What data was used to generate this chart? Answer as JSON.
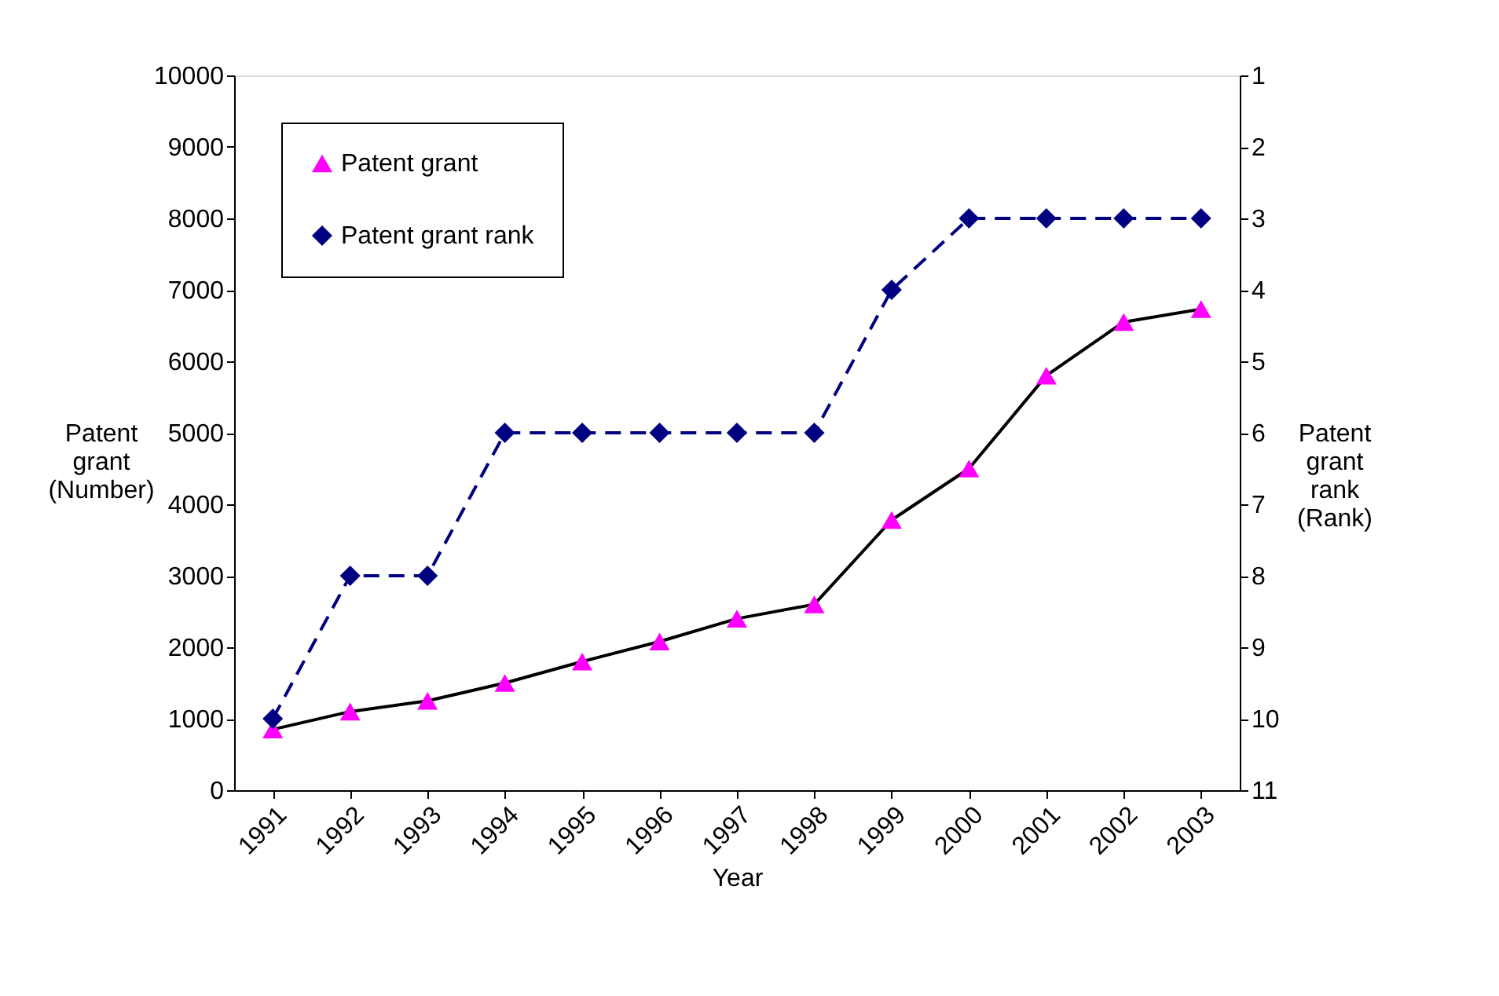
{
  "chart_data": {
    "type": "line",
    "xlabel": "Year",
    "ylabel": "Patent grant (Number)",
    "y2label": "Patent grant rank (Rank)",
    "categories": [
      "1991",
      "1992",
      "1993",
      "1994",
      "1995",
      "1996",
      "1997",
      "1998",
      "1999",
      "2000",
      "2001",
      "2002",
      "2003"
    ],
    "series": [
      {
        "name": "Patent grant",
        "color": "#000000",
        "colors": [
          "#ff00ff",
          "#ff00ff",
          "#ff00ff",
          "#ff00ff",
          "#ff00ff",
          "#ff00ff",
          "#ff00ff",
          "#ff00ff",
          "#ff00ff",
          "#ff00ff",
          "#ff00ff",
          "#ff00ff",
          "#ff00ff"
        ],
        "marker": "triangle",
        "line_style": "solid",
        "values": [
          850,
          1100,
          1250,
          1500,
          1800,
          2080,
          2400,
          2600,
          3780,
          4500,
          5800,
          6550,
          6730
        ]
      },
      {
        "name": "Patent grant rank",
        "color": "#000080",
        "marker": "diamond",
        "line_style": "dashed",
        "axis": "y2",
        "values": [
          10,
          8,
          8,
          6,
          6,
          6,
          6,
          6,
          4,
          3,
          3,
          3,
          3
        ]
      }
    ],
    "ylim": [
      0,
      10000
    ],
    "yticks": [
      0,
      1000,
      2000,
      3000,
      4000,
      5000,
      6000,
      7000,
      8000,
      9000,
      10000
    ],
    "y2lim": [
      11,
      1
    ],
    "y2ticks": [
      1,
      2,
      3,
      4,
      5,
      6,
      7,
      8,
      9,
      10,
      11
    ],
    "grid": false,
    "legend": "top left"
  }
}
